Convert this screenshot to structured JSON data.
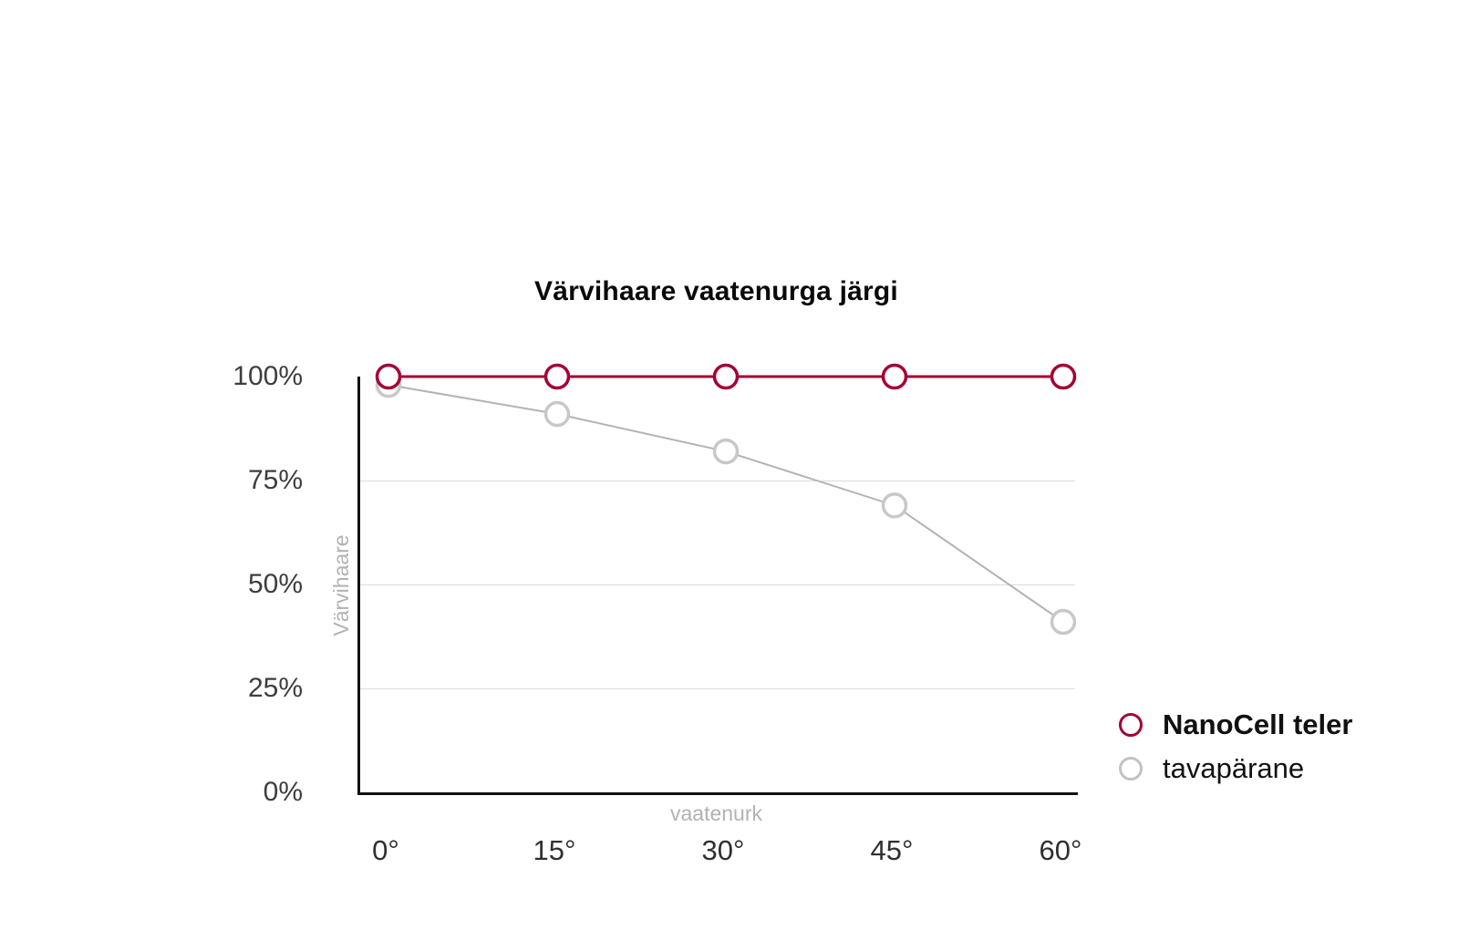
{
  "chart_data": {
    "type": "line",
    "title": "Värvihaare vaatenurga järgi",
    "xlabel": "vaatenurk",
    "ylabel": "Värvihaare",
    "categories": [
      "0°",
      "15°",
      "30°",
      "45°",
      "60°"
    ],
    "series": [
      {
        "name": "NanoCell teler",
        "values": [
          100,
          100,
          100,
          100,
          100
        ],
        "color": "#a50034",
        "line_width": 3,
        "bold_legend": true
      },
      {
        "name": "tavapärane",
        "values": [
          98,
          91,
          82,
          69,
          41
        ],
        "color": "#c8c8c8",
        "line_color": "#b3b3b3",
        "line_width": 2,
        "bold_legend": false
      }
    ],
    "ylim": [
      0,
      100
    ],
    "yticks": [
      "100%",
      "75%",
      "50%",
      "25%",
      "0%"
    ],
    "ytick_values": [
      100,
      75,
      50,
      25,
      0
    ],
    "grid": true,
    "legend_position": "right-bottom",
    "marker": "open-circle",
    "background": "#ffffff"
  },
  "legend": {
    "items": [
      {
        "label": "NanoCell teler",
        "color": "#a50034",
        "bold": true
      },
      {
        "label": "tavapärane",
        "color": "#c2c2c2",
        "bold": false
      }
    ]
  }
}
